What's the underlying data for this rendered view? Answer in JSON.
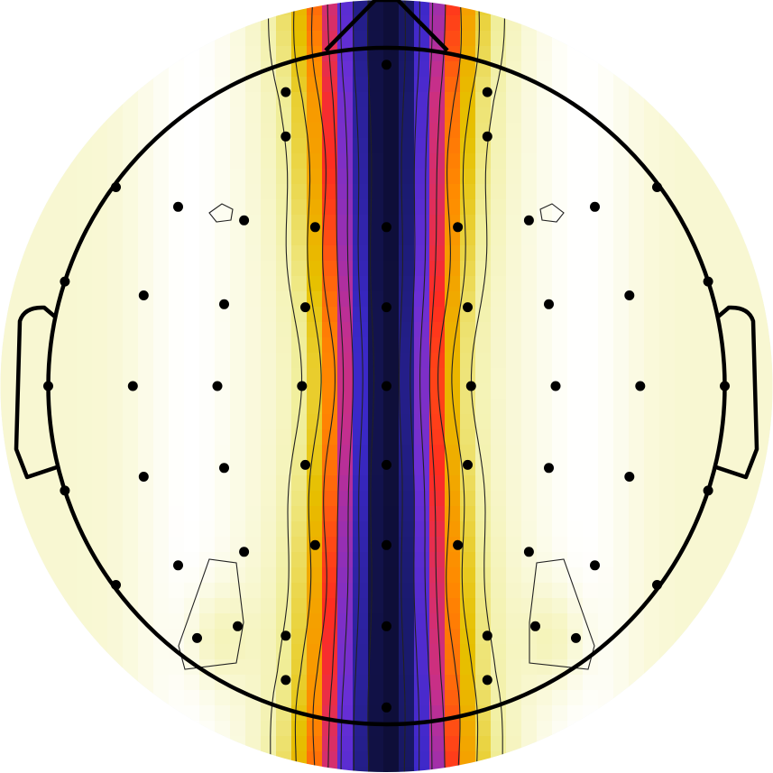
{
  "chart_data": {
    "type": "heatmap",
    "title": "",
    "colormap": [
      "#0b0b2a",
      "#1a1a6e",
      "#3b28c8",
      "#6a2fd6",
      "#c42f8e",
      "#ff2d1f",
      "#ff8a00",
      "#e6c000",
      "#f0ee9a",
      "#ffffff"
    ],
    "outside_color": "#e8f0fe",
    "head_outline_color": "#000000",
    "contour_color": "#222222",
    "sensor_color": "#000000",
    "sensors": [
      {
        "x": 0.0,
        "y": 0.95
      },
      {
        "x": -0.298,
        "y": 0.869
      },
      {
        "x": 0.298,
        "y": 0.869
      },
      {
        "x": -0.298,
        "y": 0.738
      },
      {
        "x": 0.298,
        "y": 0.738
      },
      {
        "x": -0.8,
        "y": 0.588
      },
      {
        "x": 0.8,
        "y": 0.588
      },
      {
        "x": -0.616,
        "y": 0.53
      },
      {
        "x": 0.616,
        "y": 0.53
      },
      {
        "x": -0.421,
        "y": 0.49
      },
      {
        "x": 0.421,
        "y": 0.49
      },
      {
        "x": -0.211,
        "y": 0.47
      },
      {
        "x": 0.0,
        "y": 0.47
      },
      {
        "x": 0.211,
        "y": 0.47
      },
      {
        "x": -0.951,
        "y": 0.309
      },
      {
        "x": 0.951,
        "y": 0.309
      },
      {
        "x": -0.718,
        "y": 0.268
      },
      {
        "x": 0.718,
        "y": 0.268
      },
      {
        "x": -0.48,
        "y": 0.242
      },
      {
        "x": 0.48,
        "y": 0.242
      },
      {
        "x": -0.24,
        "y": 0.233
      },
      {
        "x": 0.0,
        "y": 0.233
      },
      {
        "x": 0.24,
        "y": 0.233
      },
      {
        "x": -1.0,
        "y": 0.0
      },
      {
        "x": 1.0,
        "y": 0.0
      },
      {
        "x": -0.75,
        "y": 0.0
      },
      {
        "x": 0.75,
        "y": 0.0
      },
      {
        "x": -0.5,
        "y": 0.0
      },
      {
        "x": 0.5,
        "y": 0.0
      },
      {
        "x": -0.25,
        "y": 0.0
      },
      {
        "x": 0.0,
        "y": 0.0
      },
      {
        "x": 0.25,
        "y": 0.0
      },
      {
        "x": -0.951,
        "y": -0.309
      },
      {
        "x": 0.951,
        "y": -0.309
      },
      {
        "x": -0.718,
        "y": -0.268
      },
      {
        "x": 0.718,
        "y": -0.268
      },
      {
        "x": -0.48,
        "y": -0.242
      },
      {
        "x": 0.48,
        "y": -0.242
      },
      {
        "x": -0.24,
        "y": -0.233
      },
      {
        "x": 0.0,
        "y": -0.233
      },
      {
        "x": 0.24,
        "y": -0.233
      },
      {
        "x": -0.8,
        "y": -0.588
      },
      {
        "x": 0.8,
        "y": -0.588
      },
      {
        "x": -0.616,
        "y": -0.53
      },
      {
        "x": 0.616,
        "y": -0.53
      },
      {
        "x": -0.421,
        "y": -0.49
      },
      {
        "x": 0.421,
        "y": -0.49
      },
      {
        "x": -0.211,
        "y": -0.47
      },
      {
        "x": 0.0,
        "y": -0.47
      },
      {
        "x": 0.211,
        "y": -0.47
      },
      {
        "x": -0.56,
        "y": -0.745
      },
      {
        "x": 0.56,
        "y": -0.745
      },
      {
        "x": -0.44,
        "y": -0.71
      },
      {
        "x": 0.44,
        "y": -0.71
      },
      {
        "x": -0.298,
        "y": -0.738
      },
      {
        "x": 0.298,
        "y": -0.738
      },
      {
        "x": 0.0,
        "y": -0.71
      },
      {
        "x": -0.298,
        "y": -0.869
      },
      {
        "x": 0.298,
        "y": -0.869
      },
      {
        "x": 0.0,
        "y": -0.95
      }
    ]
  }
}
